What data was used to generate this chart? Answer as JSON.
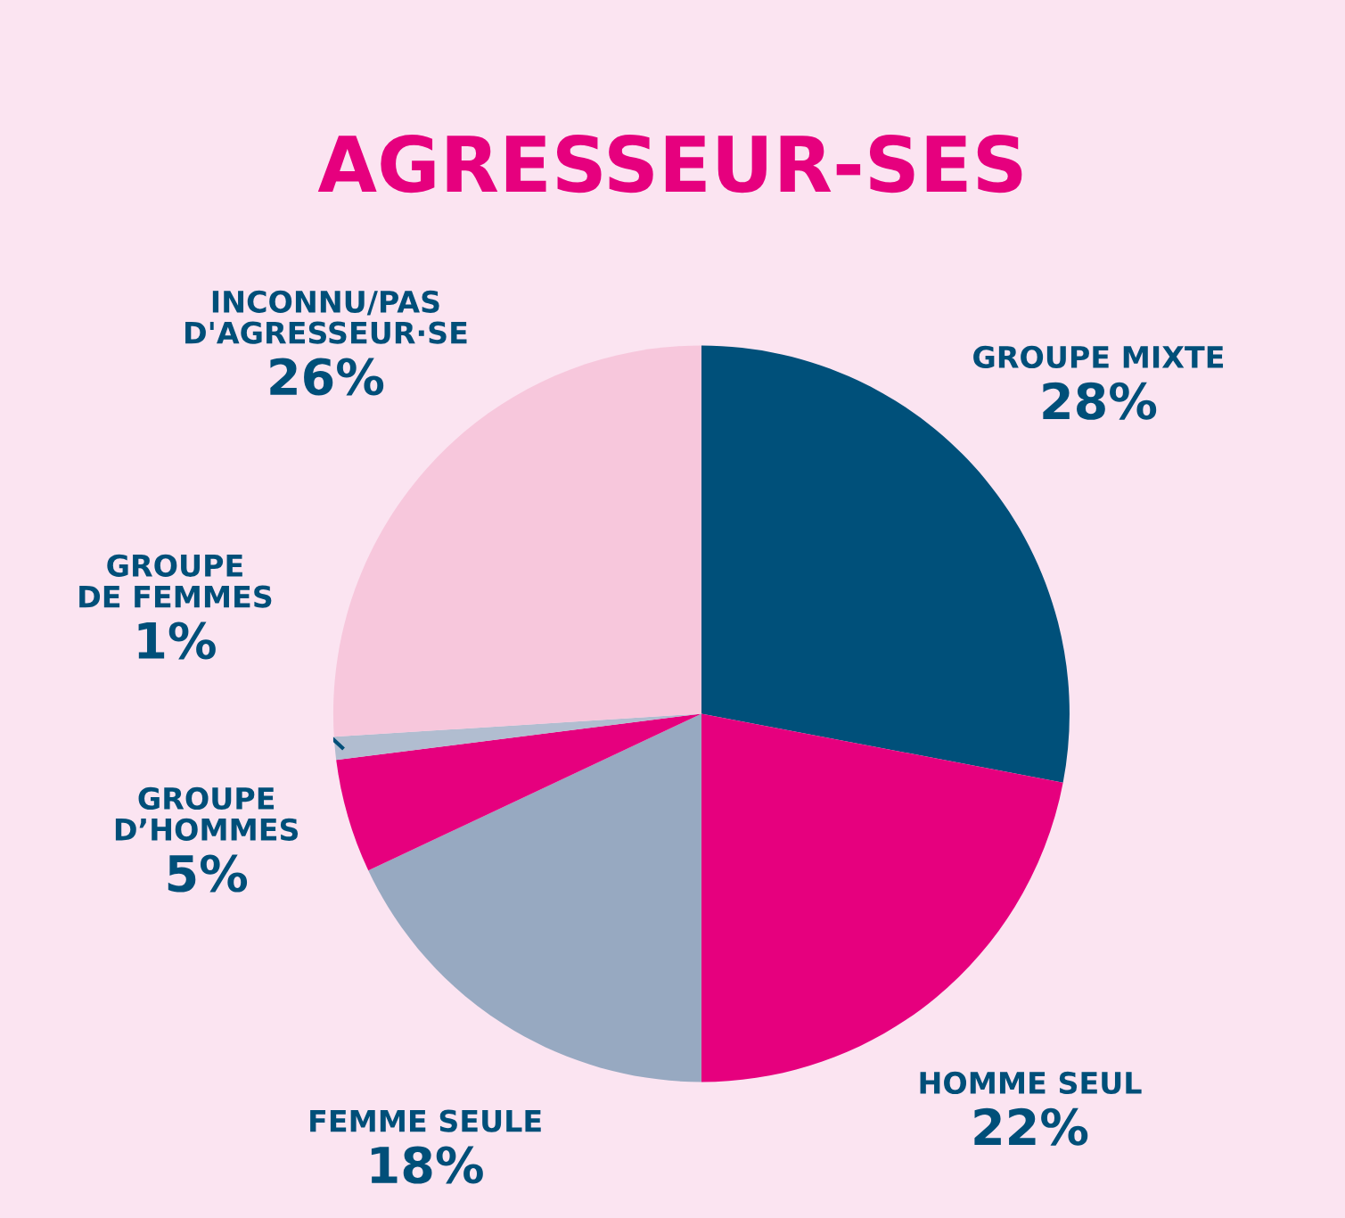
{
  "chart_data": {
    "type": "pie",
    "title": "AGRESSEUR-SES",
    "categories": [
      "GROUPE MIXTE",
      "HOMME SEUL",
      "FEMME SEULE",
      "GROUPE\nD’HOMMES",
      "GROUPE\nDE FEMMES",
      "INCONNU/PAS\nD'AGRESSEUR·SE"
    ],
    "values": [
      28,
      22,
      18,
      5,
      1,
      26
    ],
    "value_labels": [
      "28%",
      "22%",
      "18%",
      "5%",
      "1%",
      "26%"
    ],
    "colors": [
      "#00507a",
      "#e6007e",
      "#97a9c1",
      "#e6007e",
      "#b1bdd0",
      "#f7c7dc"
    ]
  }
}
